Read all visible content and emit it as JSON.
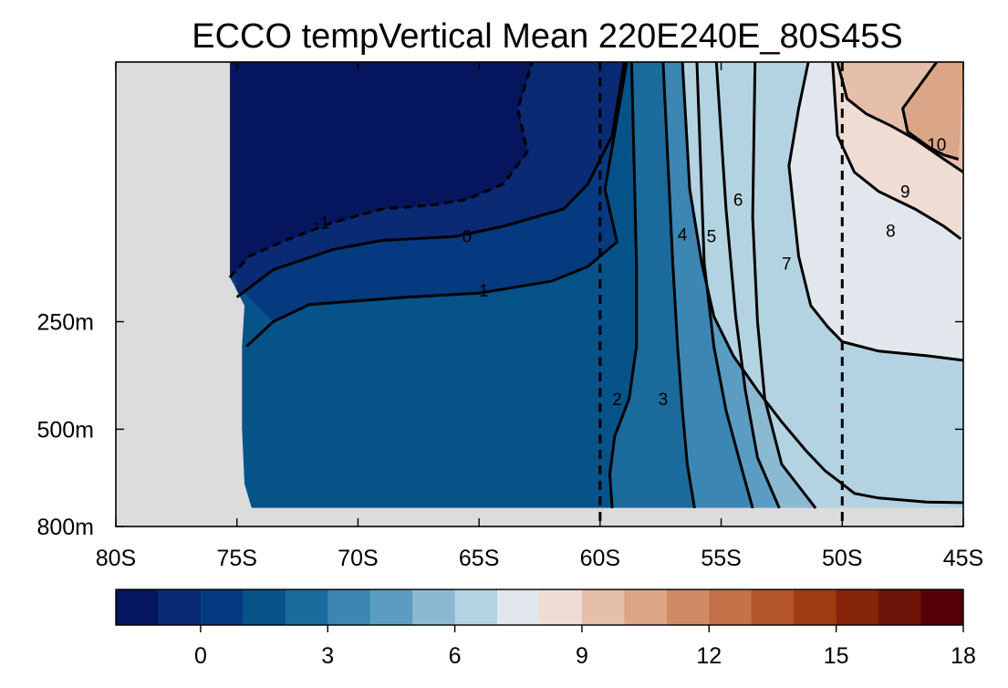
{
  "chart_data": {
    "type": "contour",
    "title": "ECCO tempVertical Mean 220E240E_80S45S",
    "x_ticks": [
      -80,
      -75,
      -70,
      -65,
      -60,
      -55,
      -50,
      -45
    ],
    "x_tick_labels": [
      "80S",
      "75S",
      "70S",
      "65S",
      "60S",
      "55S",
      "50S",
      "45S"
    ],
    "xlim": [
      -80,
      -45
    ],
    "y_scale": "sqrt",
    "y_ticks": [
      250,
      500,
      800
    ],
    "y_tick_labels": [
      "250m",
      "500m",
      "800m"
    ],
    "ylim": [
      0,
      800
    ],
    "reference_lines_lat": [
      -60,
      -50
    ],
    "no_data_color": "#dcdcdc",
    "contour_levels": [
      -2,
      -1,
      0,
      1,
      2,
      3,
      4,
      5,
      6,
      7,
      8,
      9,
      10,
      11,
      12,
      13,
      14,
      15,
      16,
      17,
      18
    ],
    "contour_line_labels": [
      "-1",
      "0",
      "1",
      "2",
      "3",
      "4",
      "5",
      "6",
      "7",
      "8",
      "9",
      "10"
    ],
    "colorbar": {
      "ticks": [
        0,
        3,
        6,
        9,
        12,
        15,
        18
      ],
      "tick_labels": [
        "0",
        "3",
        "6",
        "9",
        "12",
        "15",
        "18"
      ],
      "colors": [
        "#05155e",
        "#0a2a74",
        "#053a80",
        "#06538a",
        "#1a6b9c",
        "#3b86b2",
        "#5b9dc2",
        "#8bb9d2",
        "#b4d3e2",
        "#e1e7ec",
        "#efddd4",
        "#e6bfab",
        "#dba688",
        "#d08b65",
        "#c47048",
        "#b5552a",
        "#9e3c12",
        "#86240a",
        "#6e1308",
        "#560008"
      ]
    }
  }
}
